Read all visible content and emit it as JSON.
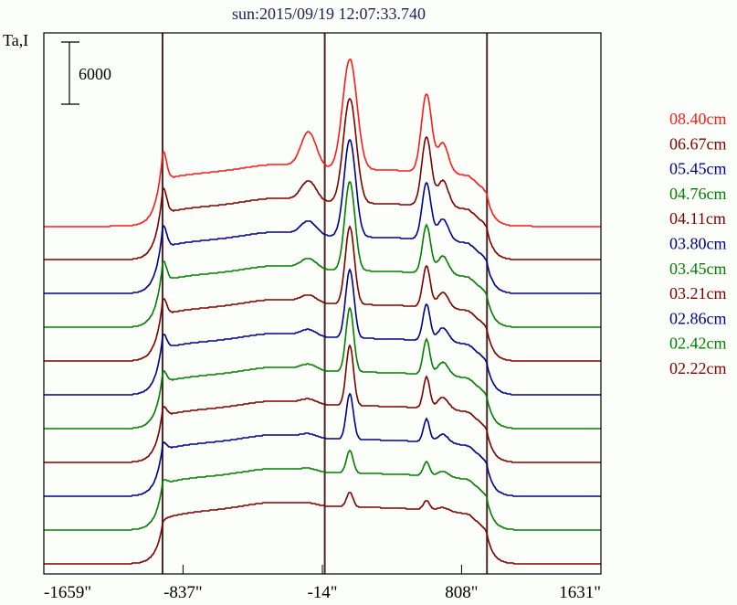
{
  "chart_data": {
    "type": "line",
    "title": "sun:2015/09/19 12:07:33.740",
    "ylabel": "Ta,I",
    "scale_bar_label": "6000",
    "scale_bar_value": 6000,
    "x_unit": "arcsec",
    "xlim": [
      -1659,
      1631
    ],
    "x_ticks": [
      {
        "value": -1659,
        "label": "-1659\""
      },
      {
        "value": -837,
        "label": "-837\""
      },
      {
        "value": -14,
        "label": "-14\""
      },
      {
        "value": 808,
        "label": "808\""
      },
      {
        "value": 1631,
        "label": "1631\""
      }
    ],
    "reference_lines_arcsec": [
      -958,
      0,
      958
    ],
    "trace_offset": 3260,
    "grid": false,
    "legend_position": "right",
    "sources_arcsec": {
      "s1": -95,
      "s2": 148,
      "s3": 601,
      "s3_shoulder": 698,
      "plage": -300
    },
    "series": [
      {
        "name": "08.40cm",
        "color": "#ff1a1a",
        "disk_center": 5500,
        "disk_edge": 4000,
        "limb": 2900,
        "s1": 3400,
        "s2": 10650,
        "s3": 7500,
        "s2_width": 42,
        "s3_width": 30
      },
      {
        "name": "06.67cm",
        "color": "#800000",
        "disk_center": 5500,
        "disk_edge": 4000,
        "limb": 2640,
        "s1": 1940,
        "s2": 10100,
        "s3": 6600,
        "s2_width": 38,
        "s3_width": 28
      },
      {
        "name": "05.45cm",
        "color": "#000090",
        "disk_center": 5500,
        "disk_edge": 4000,
        "limb": 2290,
        "s1": 1320,
        "s2": 9400,
        "s3": 5450,
        "s2_width": 34,
        "s3_width": 26
      },
      {
        "name": "04.76cm",
        "color": "#008000",
        "disk_center": 5500,
        "disk_edge": 4000,
        "limb": 2110,
        "s1": 970,
        "s2": 8600,
        "s3": 4600,
        "s2_width": 30,
        "s3_width": 24
      },
      {
        "name": "04.11cm",
        "color": "#800000",
        "disk_center": 5500,
        "disk_edge": 4000,
        "limb": 1760,
        "s1": 700,
        "s2": 7500,
        "s3": 3950,
        "s2_width": 27,
        "s3_width": 22
      },
      {
        "name": "03.80cm",
        "color": "#000090",
        "disk_center": 5500,
        "disk_edge": 4000,
        "limb": 1580,
        "s1": 620,
        "s2": 6600,
        "s3": 3500,
        "s2_width": 25,
        "s3_width": 21
      },
      {
        "name": "03.45cm",
        "color": "#008000",
        "disk_center": 5500,
        "disk_edge": 4000,
        "limb": 1230,
        "s1": 530,
        "s2": 6150,
        "s3": 3350,
        "s2_width": 23,
        "s3_width": 20
      },
      {
        "name": "03.21cm",
        "color": "#800000",
        "disk_center": 5500,
        "disk_edge": 4000,
        "limb": 1060,
        "s1": 440,
        "s2": 5800,
        "s3": 3000,
        "s2_width": 22,
        "s3_width": 19
      },
      {
        "name": "02.86cm",
        "color": "#000090",
        "disk_center": 5500,
        "disk_edge": 4000,
        "limb": 880,
        "s1": 350,
        "s2": 4400,
        "s3": 2200,
        "s2_width": 21,
        "s3_width": 18
      },
      {
        "name": "02.42cm",
        "color": "#008000",
        "disk_center": 5500,
        "disk_edge": 4000,
        "limb": 530,
        "s1": 260,
        "s2": 2200,
        "s3": 1320,
        "s2_width": 20,
        "s3_width": 18
      },
      {
        "name": "02.22cm",
        "color": "#800000",
        "disk_center": 5500,
        "disk_edge": 3800,
        "limb": 0,
        "s1": 180,
        "s2": 1400,
        "s3": 880,
        "s2_width": 19,
        "s3_width": 18
      }
    ]
  }
}
